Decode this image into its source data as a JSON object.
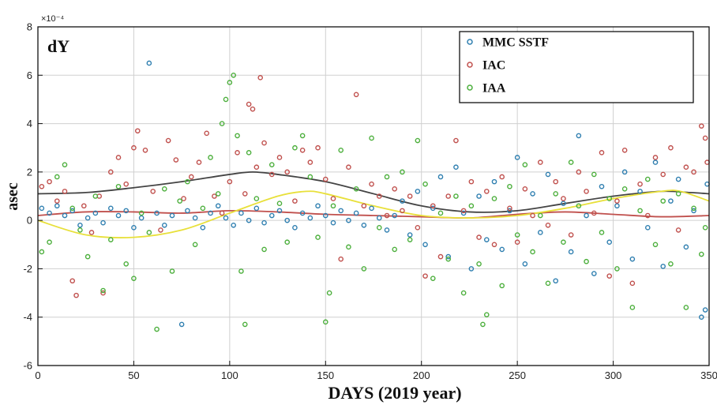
{
  "chart_data": {
    "type": "scatter",
    "title": "dY",
    "xlabel": "DAYS (2019 year)",
    "ylabel": "asec",
    "y_exponent_label": "×10⁻⁴",
    "xlim": [
      0,
      350
    ],
    "ylim": [
      -6,
      8
    ],
    "x_ticks": [
      0,
      50,
      100,
      150,
      200,
      250,
      300,
      350
    ],
    "y_ticks": [
      -6,
      -4,
      -2,
      0,
      2,
      4,
      6,
      8
    ],
    "grid": true,
    "legend_position": "top-right",
    "series": [
      {
        "name": "MMC SSTF",
        "color": "#2f7fb0",
        "points": [
          [
            2,
            0.5
          ],
          [
            6,
            0.3
          ],
          [
            10,
            0.6
          ],
          [
            14,
            0.2
          ],
          [
            18,
            0.4
          ],
          [
            22,
            -0.2
          ],
          [
            26,
            0.1
          ],
          [
            30,
            0.3
          ],
          [
            34,
            -0.1
          ],
          [
            38,
            0.5
          ],
          [
            42,
            0.2
          ],
          [
            46,
            0.4
          ],
          [
            50,
            -0.3
          ],
          [
            54,
            0.1
          ],
          [
            58,
            6.5
          ],
          [
            62,
            0.3
          ],
          [
            66,
            -0.2
          ],
          [
            70,
            0.2
          ],
          [
            75,
            -4.3
          ],
          [
            78,
            0.4
          ],
          [
            82,
            0.1
          ],
          [
            86,
            -0.3
          ],
          [
            90,
            0.3
          ],
          [
            94,
            0.6
          ],
          [
            98,
            0.1
          ],
          [
            102,
            -0.2
          ],
          [
            106,
            0.3
          ],
          [
            110,
            0.0
          ],
          [
            114,
            0.5
          ],
          [
            118,
            -0.1
          ],
          [
            122,
            0.2
          ],
          [
            126,
            0.4
          ],
          [
            130,
            0.0
          ],
          [
            134,
            -0.3
          ],
          [
            138,
            0.3
          ],
          [
            142,
            0.1
          ],
          [
            146,
            0.6
          ],
          [
            150,
            0.2
          ],
          [
            154,
            -0.1
          ],
          [
            158,
            0.4
          ],
          [
            162,
            0.0
          ],
          [
            166,
            0.3
          ],
          [
            170,
            -0.2
          ],
          [
            174,
            0.5
          ],
          [
            178,
            0.1
          ],
          [
            182,
            -0.4
          ],
          [
            186,
            0.2
          ],
          [
            190,
            0.8
          ],
          [
            194,
            -0.6
          ],
          [
            198,
            1.2
          ],
          [
            202,
            -1.0
          ],
          [
            206,
            0.5
          ],
          [
            210,
            1.8
          ],
          [
            214,
            -1.5
          ],
          [
            218,
            2.2
          ],
          [
            222,
            0.3
          ],
          [
            226,
            -2.0
          ],
          [
            230,
            1.0
          ],
          [
            234,
            -0.8
          ],
          [
            238,
            1.6
          ],
          [
            242,
            -1.2
          ],
          [
            246,
            0.4
          ],
          [
            250,
            2.6
          ],
          [
            254,
            -1.8
          ],
          [
            258,
            1.1
          ],
          [
            262,
            -0.5
          ],
          [
            266,
            1.9
          ],
          [
            270,
            -2.5
          ],
          [
            274,
            0.7
          ],
          [
            278,
            -1.3
          ],
          [
            282,
            3.5
          ],
          [
            286,
            0.2
          ],
          [
            290,
            -2.2
          ],
          [
            294,
            1.4
          ],
          [
            298,
            -0.9
          ],
          [
            302,
            0.6
          ],
          [
            306,
            2.0
          ],
          [
            310,
            -1.6
          ],
          [
            314,
            1.2
          ],
          [
            318,
            -0.3
          ],
          [
            322,
            2.4
          ],
          [
            326,
            -1.9
          ],
          [
            330,
            0.8
          ],
          [
            334,
            1.7
          ],
          [
            338,
            -1.1
          ],
          [
            342,
            0.4
          ],
          [
            346,
            -4.0
          ],
          [
            348,
            -3.7
          ],
          [
            349,
            1.5
          ]
        ]
      },
      {
        "name": "IAC",
        "color": "#c0504d",
        "points": [
          [
            2,
            1.4
          ],
          [
            6,
            1.6
          ],
          [
            10,
            0.8
          ],
          [
            14,
            1.2
          ],
          [
            18,
            -2.5
          ],
          [
            20,
            -3.1
          ],
          [
            24,
            0.6
          ],
          [
            28,
            -0.5
          ],
          [
            32,
            1.0
          ],
          [
            34,
            -3.0
          ],
          [
            38,
            2.0
          ],
          [
            42,
            2.6
          ],
          [
            46,
            1.5
          ],
          [
            50,
            3.0
          ],
          [
            52,
            3.7
          ],
          [
            56,
            2.9
          ],
          [
            60,
            1.2
          ],
          [
            64,
            -0.4
          ],
          [
            68,
            3.3
          ],
          [
            72,
            2.5
          ],
          [
            76,
            0.9
          ],
          [
            80,
            1.8
          ],
          [
            84,
            2.4
          ],
          [
            88,
            3.6
          ],
          [
            92,
            1.0
          ],
          [
            96,
            0.3
          ],
          [
            100,
            1.6
          ],
          [
            104,
            2.8
          ],
          [
            108,
            1.1
          ],
          [
            110,
            4.8
          ],
          [
            112,
            4.6
          ],
          [
            114,
            2.2
          ],
          [
            116,
            5.9
          ],
          [
            118,
            3.2
          ],
          [
            122,
            1.9
          ],
          [
            126,
            2.6
          ],
          [
            130,
            2.0
          ],
          [
            134,
            0.8
          ],
          [
            138,
            2.9
          ],
          [
            142,
            2.4
          ],
          [
            146,
            3.0
          ],
          [
            150,
            1.7
          ],
          [
            154,
            0.9
          ],
          [
            158,
            -1.6
          ],
          [
            162,
            2.2
          ],
          [
            166,
            5.2
          ],
          [
            170,
            0.6
          ],
          [
            174,
            1.5
          ],
          [
            178,
            1.0
          ],
          [
            182,
            0.2
          ],
          [
            186,
            1.3
          ],
          [
            190,
            0.4
          ],
          [
            194,
            1.0
          ],
          [
            198,
            -0.3
          ],
          [
            202,
            -2.3
          ],
          [
            206,
            0.6
          ],
          [
            210,
            -1.5
          ],
          [
            214,
            1.0
          ],
          [
            218,
            3.3
          ],
          [
            222,
            0.4
          ],
          [
            226,
            1.6
          ],
          [
            230,
            -0.7
          ],
          [
            234,
            1.2
          ],
          [
            238,
            -1.0
          ],
          [
            242,
            1.8
          ],
          [
            246,
            0.5
          ],
          [
            250,
            -0.9
          ],
          [
            254,
            1.3
          ],
          [
            258,
            0.2
          ],
          [
            262,
            2.4
          ],
          [
            266,
            -0.2
          ],
          [
            270,
            1.6
          ],
          [
            274,
            0.9
          ],
          [
            278,
            -0.6
          ],
          [
            282,
            2.0
          ],
          [
            286,
            1.2
          ],
          [
            290,
            0.3
          ],
          [
            294,
            2.8
          ],
          [
            298,
            -2.3
          ],
          [
            302,
            0.8
          ],
          [
            306,
            2.9
          ],
          [
            310,
            -2.6
          ],
          [
            314,
            1.5
          ],
          [
            318,
            0.2
          ],
          [
            322,
            2.6
          ],
          [
            326,
            1.9
          ],
          [
            330,
            3.0
          ],
          [
            334,
            -0.4
          ],
          [
            338,
            2.2
          ],
          [
            342,
            2.0
          ],
          [
            346,
            3.9
          ],
          [
            348,
            3.4
          ],
          [
            349,
            2.4
          ]
        ]
      },
      {
        "name": "IAA",
        "color": "#4caf3c",
        "points": [
          [
            2,
            -1.3
          ],
          [
            6,
            -0.9
          ],
          [
            10,
            1.8
          ],
          [
            14,
            2.3
          ],
          [
            18,
            0.5
          ],
          [
            22,
            -0.4
          ],
          [
            26,
            -1.5
          ],
          [
            30,
            1.0
          ],
          [
            34,
            -2.9
          ],
          [
            38,
            -0.8
          ],
          [
            42,
            1.4
          ],
          [
            46,
            -1.8
          ],
          [
            50,
            -2.4
          ],
          [
            54,
            0.3
          ],
          [
            58,
            -0.5
          ],
          [
            62,
            -4.5
          ],
          [
            66,
            1.3
          ],
          [
            70,
            -2.1
          ],
          [
            74,
            0.8
          ],
          [
            78,
            1.6
          ],
          [
            82,
            -1.0
          ],
          [
            86,
            0.5
          ],
          [
            90,
            2.6
          ],
          [
            94,
            1.1
          ],
          [
            96,
            4.0
          ],
          [
            98,
            5.0
          ],
          [
            100,
            5.7
          ],
          [
            102,
            6.0
          ],
          [
            104,
            3.5
          ],
          [
            106,
            -2.1
          ],
          [
            108,
            -4.3
          ],
          [
            110,
            2.8
          ],
          [
            114,
            0.9
          ],
          [
            118,
            -1.2
          ],
          [
            122,
            2.3
          ],
          [
            126,
            0.7
          ],
          [
            130,
            -0.9
          ],
          [
            134,
            3.0
          ],
          [
            138,
            3.5
          ],
          [
            142,
            1.8
          ],
          [
            146,
            -0.7
          ],
          [
            150,
            -4.2
          ],
          [
            152,
            -3.0
          ],
          [
            154,
            0.6
          ],
          [
            158,
            2.9
          ],
          [
            162,
            -1.1
          ],
          [
            166,
            1.3
          ],
          [
            170,
            -2.0
          ],
          [
            174,
            3.4
          ],
          [
            178,
            -0.3
          ],
          [
            182,
            1.8
          ],
          [
            186,
            -1.2
          ],
          [
            190,
            2.0
          ],
          [
            194,
            -0.8
          ],
          [
            198,
            3.3
          ],
          [
            202,
            1.5
          ],
          [
            206,
            -2.4
          ],
          [
            210,
            0.3
          ],
          [
            214,
            -1.6
          ],
          [
            218,
            1.0
          ],
          [
            222,
            -3.0
          ],
          [
            226,
            0.6
          ],
          [
            230,
            -1.8
          ],
          [
            232,
            -4.3
          ],
          [
            234,
            -3.9
          ],
          [
            238,
            0.9
          ],
          [
            242,
            -2.7
          ],
          [
            246,
            1.4
          ],
          [
            250,
            -0.6
          ],
          [
            254,
            2.3
          ],
          [
            258,
            -1.3
          ],
          [
            262,
            0.2
          ],
          [
            266,
            -2.6
          ],
          [
            270,
            1.1
          ],
          [
            274,
            -0.9
          ],
          [
            278,
            2.4
          ],
          [
            282,
            0.6
          ],
          [
            286,
            -1.7
          ],
          [
            290,
            1.9
          ],
          [
            294,
            -0.5
          ],
          [
            298,
            0.9
          ],
          [
            302,
            -2.0
          ],
          [
            306,
            1.3
          ],
          [
            310,
            -3.6
          ],
          [
            314,
            0.4
          ],
          [
            318,
            1.7
          ],
          [
            322,
            -1.0
          ],
          [
            326,
            0.8
          ],
          [
            330,
            -1.8
          ],
          [
            334,
            1.1
          ],
          [
            338,
            -3.6
          ],
          [
            342,
            0.5
          ],
          [
            346,
            -1.4
          ],
          [
            348,
            -0.3
          ]
        ]
      }
    ],
    "fit_curves": [
      {
        "series": "MMC SSTF",
        "color": "#444444",
        "x": [
          0,
          25,
          50,
          75,
          100,
          112,
          125,
          150,
          175,
          200,
          225,
          250,
          275,
          300,
          325,
          340,
          350
        ],
        "y": [
          1.1,
          1.15,
          1.35,
          1.6,
          1.9,
          2.0,
          1.9,
          1.6,
          1.1,
          0.6,
          0.35,
          0.4,
          0.7,
          1.0,
          1.2,
          1.15,
          1.1
        ]
      },
      {
        "series": "IAC",
        "color": "#c0504d",
        "x": [
          0,
          25,
          50,
          75,
          100,
          125,
          150,
          175,
          200,
          225,
          250,
          275,
          300,
          325,
          350
        ],
        "y": [
          0.2,
          0.35,
          0.35,
          0.3,
          0.4,
          0.35,
          0.25,
          0.2,
          0.15,
          0.1,
          0.25,
          0.35,
          0.25,
          0.15,
          0.2
        ]
      },
      {
        "series": "IAA",
        "color": "#e8e03a",
        "x": [
          0,
          25,
          50,
          75,
          100,
          125,
          140,
          150,
          175,
          200,
          225,
          250,
          275,
          300,
          325,
          335,
          350
        ],
        "y": [
          0.0,
          -0.6,
          -0.7,
          -0.4,
          0.3,
          1.0,
          1.2,
          1.1,
          0.6,
          0.2,
          0.1,
          0.2,
          0.5,
          0.9,
          1.2,
          1.2,
          0.8
        ]
      }
    ]
  }
}
